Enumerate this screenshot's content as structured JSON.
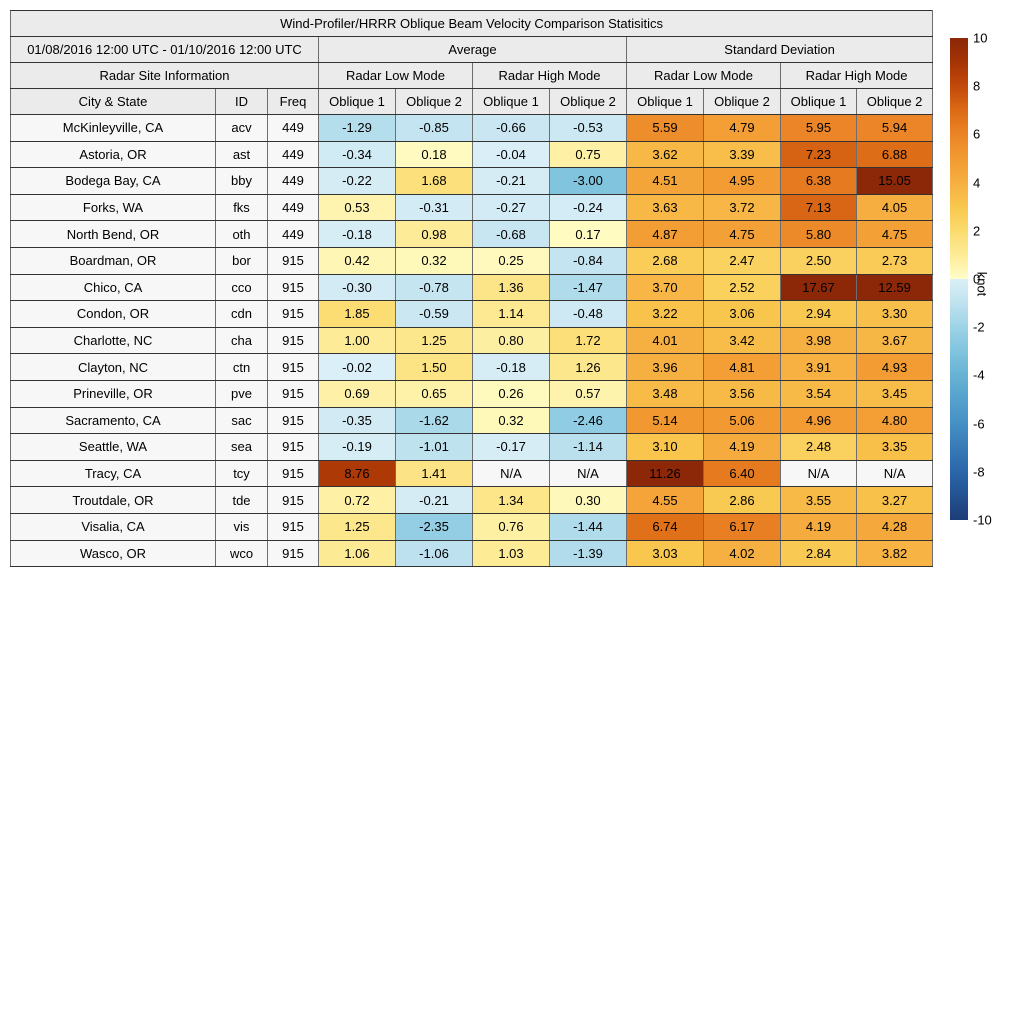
{
  "chart_data": {
    "type": "heatmap",
    "title": "Wind-Profiler/HRRR Oblique Beam Velocity Comparison Statisitics",
    "date_range": "01/08/2016 12:00 UTC - 01/10/2016 12:00 UTC",
    "group_headers": {
      "average": "Average",
      "std": "Standard Deviation"
    },
    "site_info_header": "Radar Site Information",
    "mode_headers": [
      "Radar Low Mode",
      "Radar High Mode",
      "Radar Low Mode",
      "Radar High Mode"
    ],
    "column_headers": [
      "City & State",
      "ID",
      "Freq",
      "Oblique 1",
      "Oblique 2",
      "Oblique 1",
      "Oblique 2",
      "Oblique 1",
      "Oblique 2",
      "Oblique 1",
      "Oblique 2"
    ],
    "rows": [
      {
        "city": "McKinleyville, CA",
        "id": "acv",
        "freq": "449",
        "values": [
          "-1.29",
          "-0.85",
          "-0.66",
          "-0.53",
          "5.59",
          "4.79",
          "5.95",
          "5.94"
        ]
      },
      {
        "city": "Astoria, OR",
        "id": "ast",
        "freq": "449",
        "values": [
          "-0.34",
          "0.18",
          "-0.04",
          "0.75",
          "3.62",
          "3.39",
          "7.23",
          "6.88"
        ]
      },
      {
        "city": "Bodega Bay, CA",
        "id": "bby",
        "freq": "449",
        "values": [
          "-0.22",
          "1.68",
          "-0.21",
          "-3.00",
          "4.51",
          "4.95",
          "6.38",
          "15.05"
        ]
      },
      {
        "city": "Forks, WA",
        "id": "fks",
        "freq": "449",
        "values": [
          "0.53",
          "-0.31",
          "-0.27",
          "-0.24",
          "3.63",
          "3.72",
          "7.13",
          "4.05"
        ]
      },
      {
        "city": "North Bend, OR",
        "id": "oth",
        "freq": "449",
        "values": [
          "-0.18",
          "0.98",
          "-0.68",
          "0.17",
          "4.87",
          "4.75",
          "5.80",
          "4.75"
        ]
      },
      {
        "city": "Boardman, OR",
        "id": "bor",
        "freq": "915",
        "values": [
          "0.42",
          "0.32",
          "0.25",
          "-0.84",
          "2.68",
          "2.47",
          "2.50",
          "2.73"
        ]
      },
      {
        "city": "Chico, CA",
        "id": "cco",
        "freq": "915",
        "values": [
          "-0.30",
          "-0.78",
          "1.36",
          "-1.47",
          "3.70",
          "2.52",
          "17.67",
          "12.59"
        ]
      },
      {
        "city": "Condon, OR",
        "id": "cdn",
        "freq": "915",
        "values": [
          "1.85",
          "-0.59",
          "1.14",
          "-0.48",
          "3.22",
          "3.06",
          "2.94",
          "3.30"
        ]
      },
      {
        "city": "Charlotte, NC",
        "id": "cha",
        "freq": "915",
        "values": [
          "1.00",
          "1.25",
          "0.80",
          "1.72",
          "4.01",
          "3.42",
          "3.98",
          "3.67"
        ]
      },
      {
        "city": "Clayton, NC",
        "id": "ctn",
        "freq": "915",
        "values": [
          "-0.02",
          "1.50",
          "-0.18",
          "1.26",
          "3.96",
          "4.81",
          "3.91",
          "4.93"
        ]
      },
      {
        "city": "Prineville, OR",
        "id": "pve",
        "freq": "915",
        "values": [
          "0.69",
          "0.65",
          "0.26",
          "0.57",
          "3.48",
          "3.56",
          "3.54",
          "3.45"
        ]
      },
      {
        "city": "Sacramento, CA",
        "id": "sac",
        "freq": "915",
        "values": [
          "-0.35",
          "-1.62",
          "0.32",
          "-2.46",
          "5.14",
          "5.06",
          "4.96",
          "4.80"
        ]
      },
      {
        "city": "Seattle, WA",
        "id": "sea",
        "freq": "915",
        "values": [
          "-0.19",
          "-1.01",
          "-0.17",
          "-1.14",
          "3.10",
          "4.19",
          "2.48",
          "3.35"
        ]
      },
      {
        "city": "Tracy, CA",
        "id": "tcy",
        "freq": "915",
        "values": [
          "8.76",
          "1.41",
          "N/A",
          "N/A",
          "11.26",
          "6.40",
          "N/A",
          "N/A"
        ]
      },
      {
        "city": "Troutdale, OR",
        "id": "tde",
        "freq": "915",
        "values": [
          "0.72",
          "-0.21",
          "1.34",
          "0.30",
          "4.55",
          "2.86",
          "3.55",
          "3.27"
        ]
      },
      {
        "city": "Visalia, CA",
        "id": "vis",
        "freq": "915",
        "values": [
          "1.25",
          "-2.35",
          "0.76",
          "-1.44",
          "6.74",
          "6.17",
          "4.19",
          "4.28"
        ]
      },
      {
        "city": "Wasco, OR",
        "id": "wco",
        "freq": "915",
        "values": [
          "1.06",
          "-1.06",
          "1.03",
          "-1.39",
          "3.03",
          "4.02",
          "2.84",
          "3.82"
        ]
      }
    ],
    "colorbar": {
      "label": "knot",
      "range": [
        -10,
        10
      ],
      "ticks": [
        "10",
        "8",
        "6",
        "4",
        "2",
        "0",
        "-2",
        "-4",
        "-6",
        "-8",
        "-10"
      ],
      "positive_stops": [
        [
          0,
          "#fffec9"
        ],
        [
          1,
          "#fdeb97"
        ],
        [
          2,
          "#fbdb6e"
        ],
        [
          3,
          "#f9c74e"
        ],
        [
          4,
          "#f6af41"
        ],
        [
          5,
          "#f29b32"
        ],
        [
          6,
          "#eb8426"
        ],
        [
          7,
          "#dc6a15"
        ],
        [
          8,
          "#c2490b"
        ],
        [
          9,
          "#a53405"
        ],
        [
          10,
          "#8c2708"
        ]
      ],
      "negative_stops": [
        [
          0,
          "#dbeff7"
        ],
        [
          -1,
          "#bfe2ef"
        ],
        [
          -2,
          "#9dd3e7"
        ],
        [
          -3,
          "#81c4de"
        ],
        [
          -4,
          "#67b2d4"
        ],
        [
          -6,
          "#4590c4"
        ],
        [
          -8,
          "#2b66aa"
        ],
        [
          -10,
          "#1d3d77"
        ]
      ]
    },
    "colors": {
      "na_cell": "#f7f7f7",
      "header_bg": "#ebebeb",
      "info_cell_bg": "#f7f7f7",
      "border_dark": "#333333",
      "border_light": "#6e6e6e"
    }
  }
}
